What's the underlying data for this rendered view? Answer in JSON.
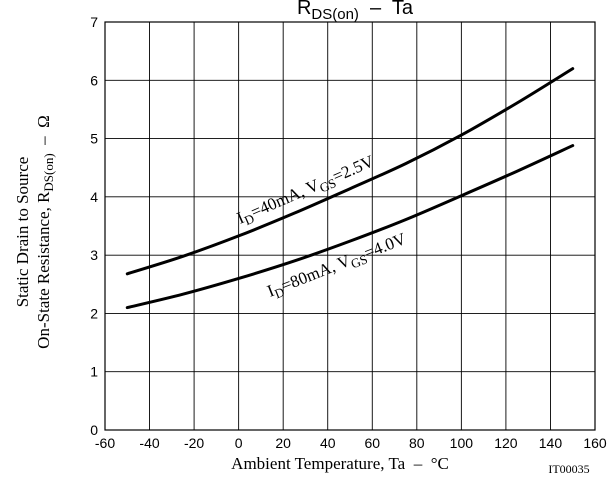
{
  "chart_data": {
    "type": "line",
    "title_parts": {
      "main": "R",
      "sub": "DS(on)",
      "rest": "  –  Ta"
    },
    "xlabel": "Ambient Temperature, Ta  –  °C",
    "ylabel": {
      "line1": "Static Drain to Source",
      "line2_main": "On-State Resistance, R",
      "line2_sub": "DS(on)",
      "line2_rest": "  –  Ω"
    },
    "xlim": [
      -60,
      160
    ],
    "ylim": [
      0,
      7
    ],
    "xticks": [
      "-60",
      "-40",
      "-20",
      "0",
      "20",
      "40",
      "60",
      "80",
      "100",
      "120",
      "140",
      "160"
    ],
    "yticks": [
      "0",
      "1",
      "2",
      "3",
      "4",
      "5",
      "6",
      "7"
    ],
    "grid": true,
    "catalog_id": "IT00035",
    "series": [
      {
        "label": {
          "a": "I",
          "a_sub": "D",
          "b": "=40mA, V",
          "b_sub": "GS",
          "c": "=2.5V"
        },
        "x": [
          -50,
          -25,
          0,
          25,
          50,
          75,
          100,
          125,
          150
        ],
        "y": [
          2.68,
          2.98,
          3.33,
          3.72,
          4.14,
          4.57,
          5.06,
          5.61,
          6.2
        ]
      },
      {
        "label": {
          "a": "I",
          "a_sub": "D",
          "b": "=80mA, V",
          "b_sub": "GS",
          "c": "=4.0V"
        },
        "x": [
          -50,
          -25,
          0,
          25,
          50,
          75,
          100,
          125,
          150
        ],
        "y": [
          2.1,
          2.33,
          2.6,
          2.9,
          3.24,
          3.61,
          4.02,
          4.44,
          4.88
        ]
      }
    ]
  }
}
